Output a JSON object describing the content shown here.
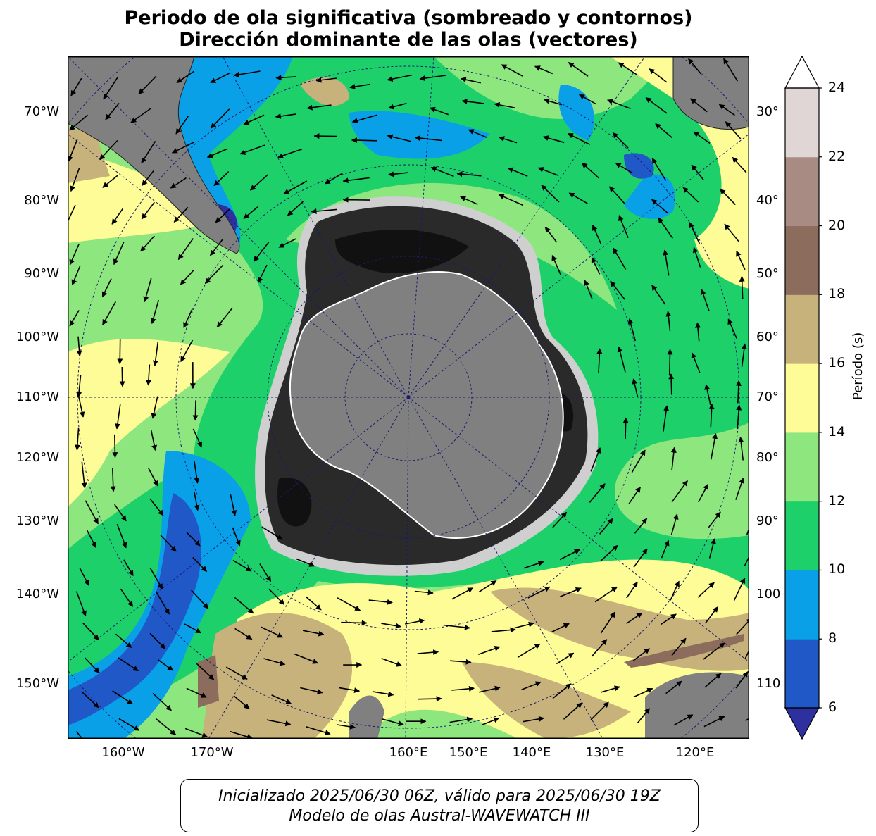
{
  "title": {
    "line1": "Periodo de ola significativa (sombreado y contornos)",
    "line2": "Dirección dominante de las olas (vectores)"
  },
  "map": {
    "projection": "south-polar-stereographic",
    "left_labels": [
      "70°W",
      "80°W",
      "90°W",
      "100°W",
      "110°W",
      "120°W",
      "130°W",
      "140°W",
      "150°W"
    ],
    "right_labels": [
      "30°",
      "40°",
      "50°",
      "60°",
      "70°",
      "80°",
      "90°",
      "100",
      "110"
    ],
    "bottom_labels": [
      "160°W",
      "170°W",
      "160°E",
      "150°E",
      "140°E",
      "130°E",
      "120°E"
    ],
    "colors": {
      "land": "#808080",
      "ice_dark": "#1a1a1a",
      "gridline": "#1a1a6e",
      "vector": "#000000"
    }
  },
  "colorbar": {
    "label": "Período (s)",
    "ticks": [
      "6",
      "8",
      "10",
      "12",
      "14",
      "16",
      "18",
      "20",
      "22",
      "24"
    ],
    "bins": [
      {
        "from": 6,
        "to": 8,
        "color": "#2058c8"
      },
      {
        "from": 8,
        "to": 10,
        "color": "#0aa0e8"
      },
      {
        "from": 10,
        "to": 12,
        "color": "#1ed06a"
      },
      {
        "from": 12,
        "to": 14,
        "color": "#8ee67e"
      },
      {
        "from": 14,
        "to": 16,
        "color": "#fdfc96"
      },
      {
        "from": 16,
        "to": 18,
        "color": "#c6b27a"
      },
      {
        "from": 18,
        "to": 20,
        "color": "#8c6c5c"
      },
      {
        "from": 20,
        "to": 22,
        "color": "#a88c84"
      },
      {
        "from": 22,
        "to": 24,
        "color": "#e0d6d6"
      }
    ],
    "under_color": "#2e30a0",
    "over_color": "#ffffff"
  },
  "footer": {
    "line1": "Inicializado 2025/06/30 06Z, válido para 2025/06/30 19Z",
    "line2": "Modelo de olas Austral-WAVEWATCH III"
  }
}
